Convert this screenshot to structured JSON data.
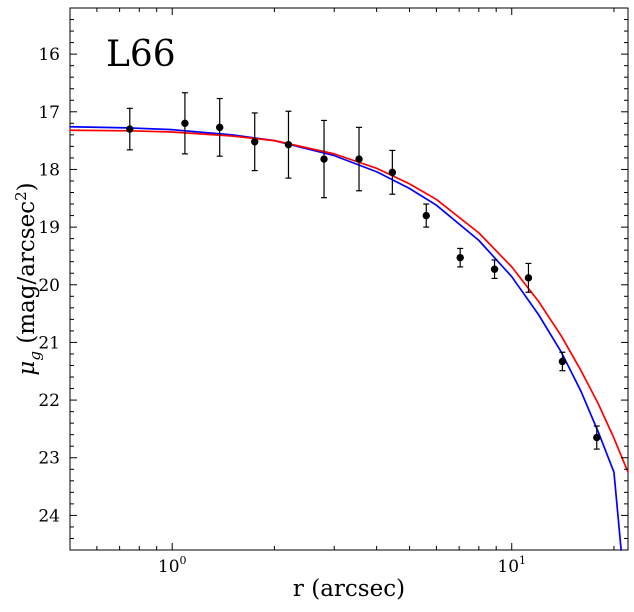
{
  "chart_data": {
    "type": "scatter",
    "panel_label": "L66",
    "xlabel": "r (arcsec)",
    "ylabel": "μ_g (mag/arcsec^2)",
    "xscale": "log",
    "yinvert": true,
    "xlim": [
      0.5,
      22
    ],
    "ylim": [
      24.6,
      15.2
    ],
    "x_major_ticks": [
      {
        "value": 1,
        "label_base": "10",
        "label_exp": "0"
      },
      {
        "value": 10,
        "label_base": "10",
        "label_exp": "1"
      }
    ],
    "y_major_ticks": [
      16,
      17,
      18,
      19,
      20,
      21,
      22,
      23,
      24
    ],
    "grid": false,
    "series": [
      {
        "kind": "points",
        "color": "#000000",
        "x": [
          0.75,
          1.09,
          1.38,
          1.75,
          2.2,
          2.8,
          3.55,
          4.45,
          5.6,
          7.05,
          8.9,
          11.2,
          14.1,
          17.8
        ],
        "y": [
          17.3,
          17.2,
          17.27,
          17.52,
          17.57,
          17.82,
          17.82,
          18.05,
          18.8,
          19.53,
          19.73,
          19.88,
          21.33,
          22.65
        ],
        "yerr": [
          0.36,
          0.53,
          0.5,
          0.5,
          0.58,
          0.67,
          0.55,
          0.38,
          0.2,
          0.16,
          0.16,
          0.25,
          0.16,
          0.2
        ]
      },
      {
        "kind": "line",
        "color": "#0000ff",
        "x": [
          0.5,
          0.75,
          1.0,
          1.5,
          2.0,
          3.0,
          4.0,
          5.0,
          6.0,
          8.0,
          10.0,
          12.0,
          14.0,
          16.0,
          18.0,
          20.0,
          21.0
        ],
        "y": [
          17.26,
          17.28,
          17.31,
          17.4,
          17.5,
          17.76,
          18.04,
          18.33,
          18.62,
          19.23,
          19.86,
          20.52,
          21.17,
          21.85,
          22.56,
          23.25,
          24.6
        ]
      },
      {
        "kind": "line",
        "color": "#ff0000",
        "x": [
          0.5,
          0.75,
          1.0,
          1.5,
          2.0,
          3.0,
          4.0,
          5.0,
          6.0,
          8.0,
          10.0,
          12.0,
          14.0,
          16.0,
          18.0,
          20.0,
          22.0
        ],
        "y": [
          17.32,
          17.33,
          17.35,
          17.42,
          17.5,
          17.73,
          17.98,
          18.25,
          18.52,
          19.1,
          19.69,
          20.29,
          20.89,
          21.49,
          22.07,
          22.66,
          23.25
        ]
      }
    ]
  }
}
